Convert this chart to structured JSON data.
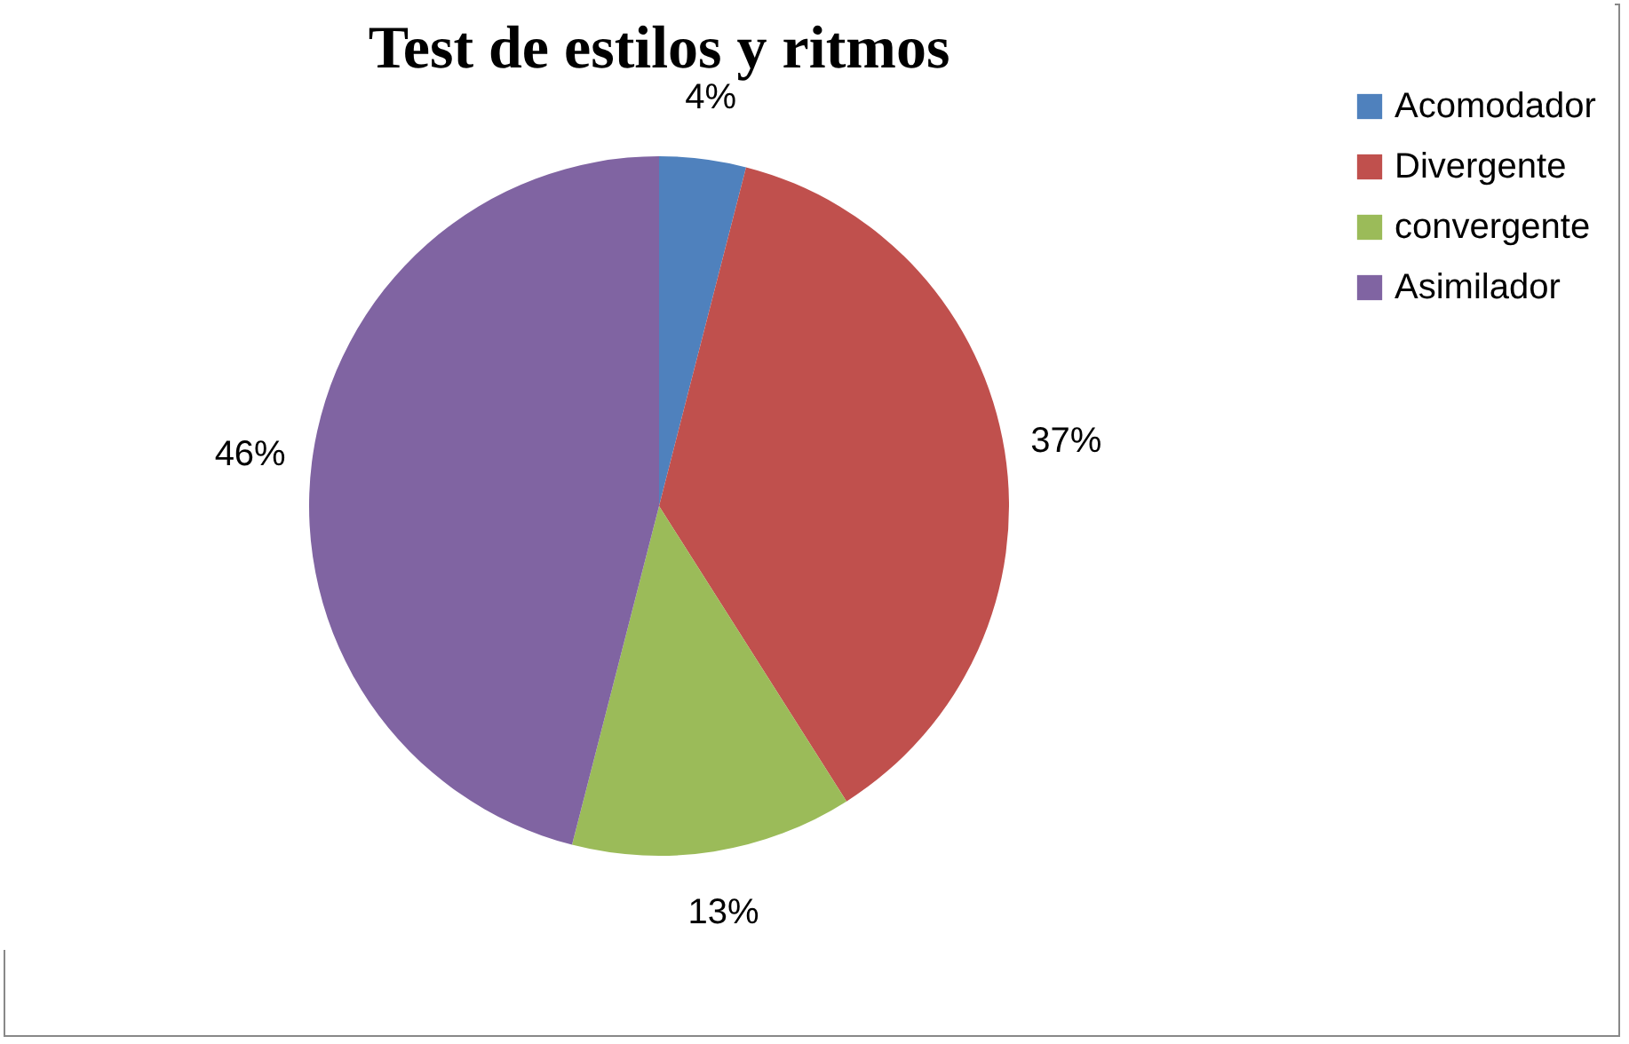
{
  "chart_data": {
    "type": "pie",
    "title": "Test de estilos y ritmos",
    "categories": [
      "Acomodador",
      "Divergente",
      "convergente",
      "Asimilador"
    ],
    "values": [
      4,
      37,
      13,
      46
    ],
    "colors": [
      "#4f81bd",
      "#c0504d",
      "#9bbb59",
      "#8064a2"
    ],
    "value_labels": [
      "4%",
      "37%",
      "13%",
      "46%"
    ],
    "legend": "right"
  }
}
